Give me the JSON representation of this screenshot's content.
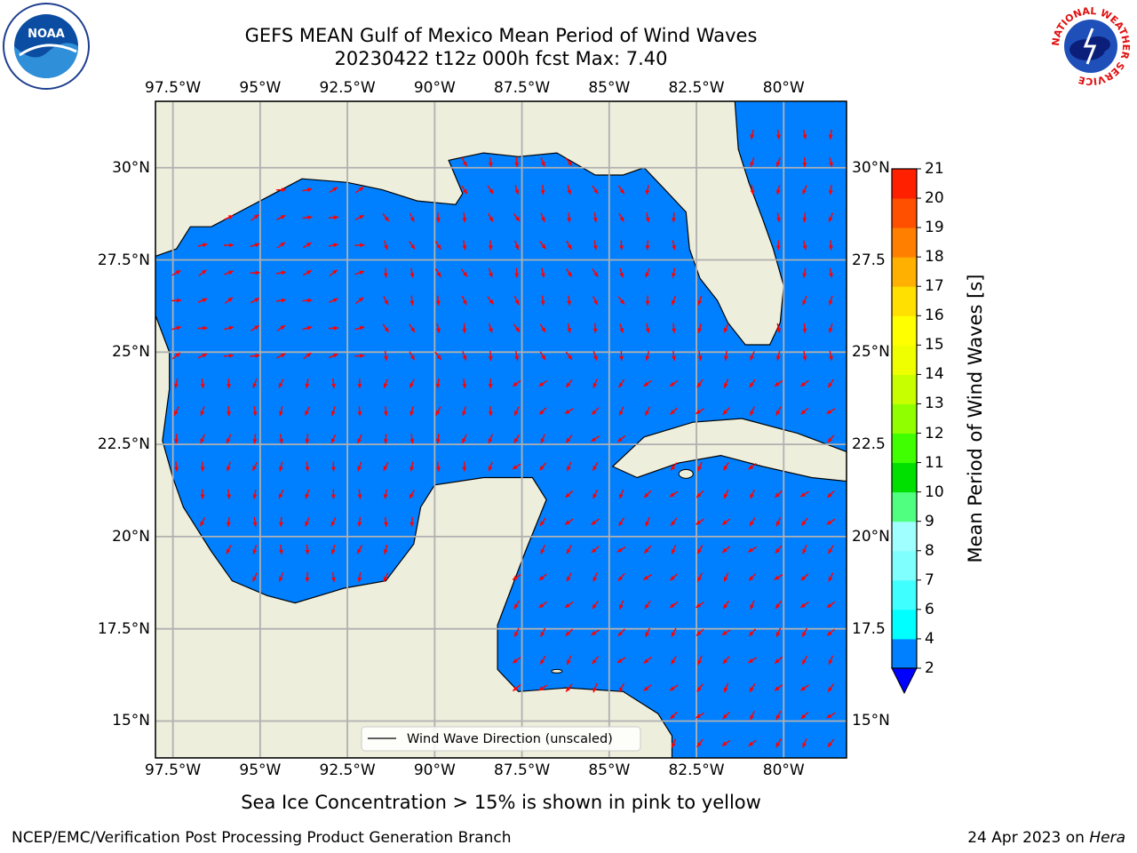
{
  "title": {
    "line1": "GEFS MEAN Gulf of Mexico Mean Period of Wind Waves",
    "line2": "20230422 t12z 000h fcst   Max: 7.40"
  },
  "map": {
    "lon_labels": [
      "97.5°W",
      "95°W",
      "92.5°W",
      "90°W",
      "87.5°W",
      "85°W",
      "82.5°W",
      "80°W"
    ],
    "lat_labels_left": [
      "30°N",
      "27.5°N",
      "25°N",
      "22.5°N",
      "20°N",
      "17.5°N",
      "15°N"
    ],
    "lat_labels_right": [
      "30°N",
      "27.5",
      "25°N",
      "22.5",
      "20°N",
      "17.5",
      "15°N"
    ],
    "extent": {
      "lon_min": -98.0,
      "lon_max": -78.2,
      "lat_min": 14.0,
      "lat_max": 31.8
    },
    "legend": "Wind Wave Direction (unscaled)",
    "land_color": "#eeeedd",
    "arrow_color": "#ff0000"
  },
  "colorbar": {
    "title": "Mean Period of Wind Waves [s]",
    "levels": [
      "2",
      "4",
      "6",
      "7",
      "8",
      "9",
      "10",
      "11",
      "12",
      "13",
      "14",
      "15",
      "16",
      "17",
      "18",
      "19",
      "20",
      "21"
    ],
    "colors": [
      "#0080ff",
      "#00ffff",
      "#40ffff",
      "#80ffff",
      "#a0ffff",
      "#50ff80",
      "#00e000",
      "#40ff00",
      "#90ff00",
      "#c8ff00",
      "#f0ff00",
      "#ffff00",
      "#ffe000",
      "#ffb000",
      "#ff8000",
      "#ff5000",
      "#ff2000"
    ],
    "under_color": "#0000ff"
  },
  "subtitle": "Sea Ice Concentration > 15% is shown in pink to yellow",
  "footer": {
    "left": "NCEP/EMC/Verification Post Processing Product Generation Branch",
    "right_date": "24 Apr 2023 on ",
    "right_host": "Hera"
  },
  "logos": {
    "left": "NOAA",
    "right": "NATIONAL WEATHER SERVICE"
  }
}
